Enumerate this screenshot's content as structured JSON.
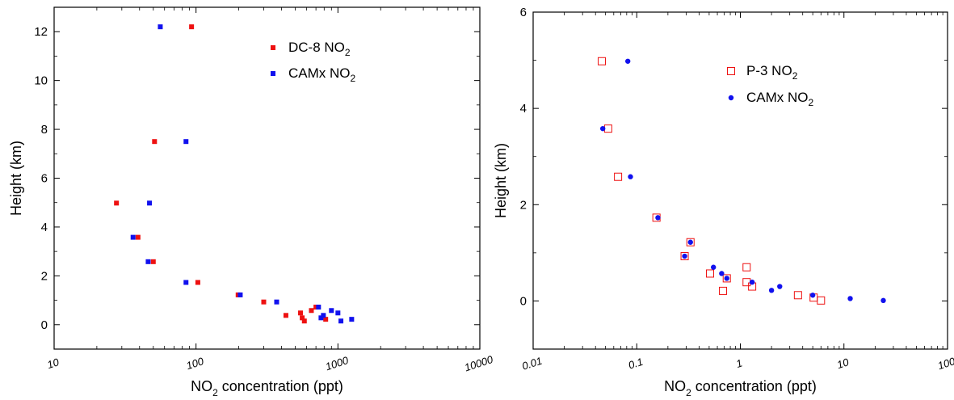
{
  "chart_data": [
    {
      "type": "scatter",
      "x_scale": "log",
      "xlim": [
        10,
        10000
      ],
      "ylim": [
        -1,
        13
      ],
      "xlabel": {
        "prefix": "NO",
        "sub": "2",
        "suffix": " concentration (ppt)"
      },
      "ylabel": "Height (km)",
      "x_ticks": [
        "10",
        "100",
        "1000",
        "10000"
      ],
      "y_ticks": [
        "0",
        "2",
        "4",
        "6",
        "8",
        "10",
        "12"
      ],
      "legend_position": "top-right",
      "series": [
        {
          "name": {
            "prefix": "DC-8 NO",
            "sub": "2"
          },
          "marker": "filled-square",
          "color": "#ee1111",
          "points": [
            [
              93,
              12.2
            ],
            [
              51,
              7.5
            ],
            [
              27.5,
              4.98
            ],
            [
              39,
              3.58
            ],
            [
              50,
              2.58
            ],
            [
              103,
              1.73
            ],
            [
              198,
              1.22
            ],
            [
              300,
              0.93
            ],
            [
              430,
              0.38
            ],
            [
              545,
              0.48
            ],
            [
              560,
              0.28
            ],
            [
              580,
              0.15
            ],
            [
              650,
              0.58
            ],
            [
              700,
              0.72
            ],
            [
              820,
              0.22
            ]
          ]
        },
        {
          "name": {
            "prefix": "CAMx NO",
            "sub": "2"
          },
          "marker": "filled-square",
          "color": "#1111ee",
          "points": [
            [
              56,
              12.2
            ],
            [
              85,
              7.5
            ],
            [
              47,
              4.98
            ],
            [
              36,
              3.58
            ],
            [
              46,
              2.58
            ],
            [
              85,
              1.73
            ],
            [
              205,
              1.22
            ],
            [
              370,
              0.93
            ],
            [
              730,
              0.72
            ],
            [
              760,
              0.28
            ],
            [
              790,
              0.38
            ],
            [
              900,
              0.58
            ],
            [
              1000,
              0.48
            ],
            [
              1050,
              0.15
            ],
            [
              1250,
              0.22
            ]
          ]
        }
      ]
    },
    {
      "type": "scatter",
      "x_scale": "log",
      "xlim": [
        0.01,
        100
      ],
      "ylim": [
        -1,
        6
      ],
      "xlabel": {
        "prefix": "NO",
        "sub": "2",
        "suffix": " concentration (ppt)"
      },
      "ylabel": "Height (km)",
      "x_ticks": [
        "0.01",
        "0.1",
        "1",
        "10",
        "100"
      ],
      "y_ticks": [
        "0",
        "2",
        "4",
        "6"
      ],
      "legend_position": "top-right",
      "series": [
        {
          "name": {
            "prefix": "P-3 NO",
            "sub": "2"
          },
          "marker": "open-square",
          "color": "#ee1111",
          "points": [
            [
              0.046,
              4.98
            ],
            [
              0.053,
              3.58
            ],
            [
              0.066,
              2.58
            ],
            [
              0.155,
              1.73
            ],
            [
              0.33,
              1.22
            ],
            [
              0.29,
              0.93
            ],
            [
              0.51,
              0.57
            ],
            [
              0.74,
              0.47
            ],
            [
              0.68,
              0.21
            ],
            [
              1.15,
              0.7
            ],
            [
              1.15,
              0.39
            ],
            [
              1.3,
              0.3
            ],
            [
              3.6,
              0.12
            ],
            [
              5.1,
              0.07
            ],
            [
              6.0,
              0.01
            ]
          ]
        },
        {
          "name": {
            "prefix": "CAMx NO",
            "sub": "2"
          },
          "marker": "filled-circle",
          "color": "#1111ee",
          "points": [
            [
              0.082,
              4.98
            ],
            [
              0.047,
              3.58
            ],
            [
              0.087,
              2.58
            ],
            [
              0.16,
              1.73
            ],
            [
              0.33,
              1.22
            ],
            [
              0.29,
              0.93
            ],
            [
              0.55,
              0.7
            ],
            [
              0.66,
              0.57
            ],
            [
              0.74,
              0.47
            ],
            [
              1.3,
              0.39
            ],
            [
              2.0,
              0.22
            ],
            [
              2.4,
              0.3
            ],
            [
              5.0,
              0.12
            ],
            [
              11.5,
              0.05
            ],
            [
              24,
              0.01
            ]
          ]
        }
      ]
    }
  ]
}
